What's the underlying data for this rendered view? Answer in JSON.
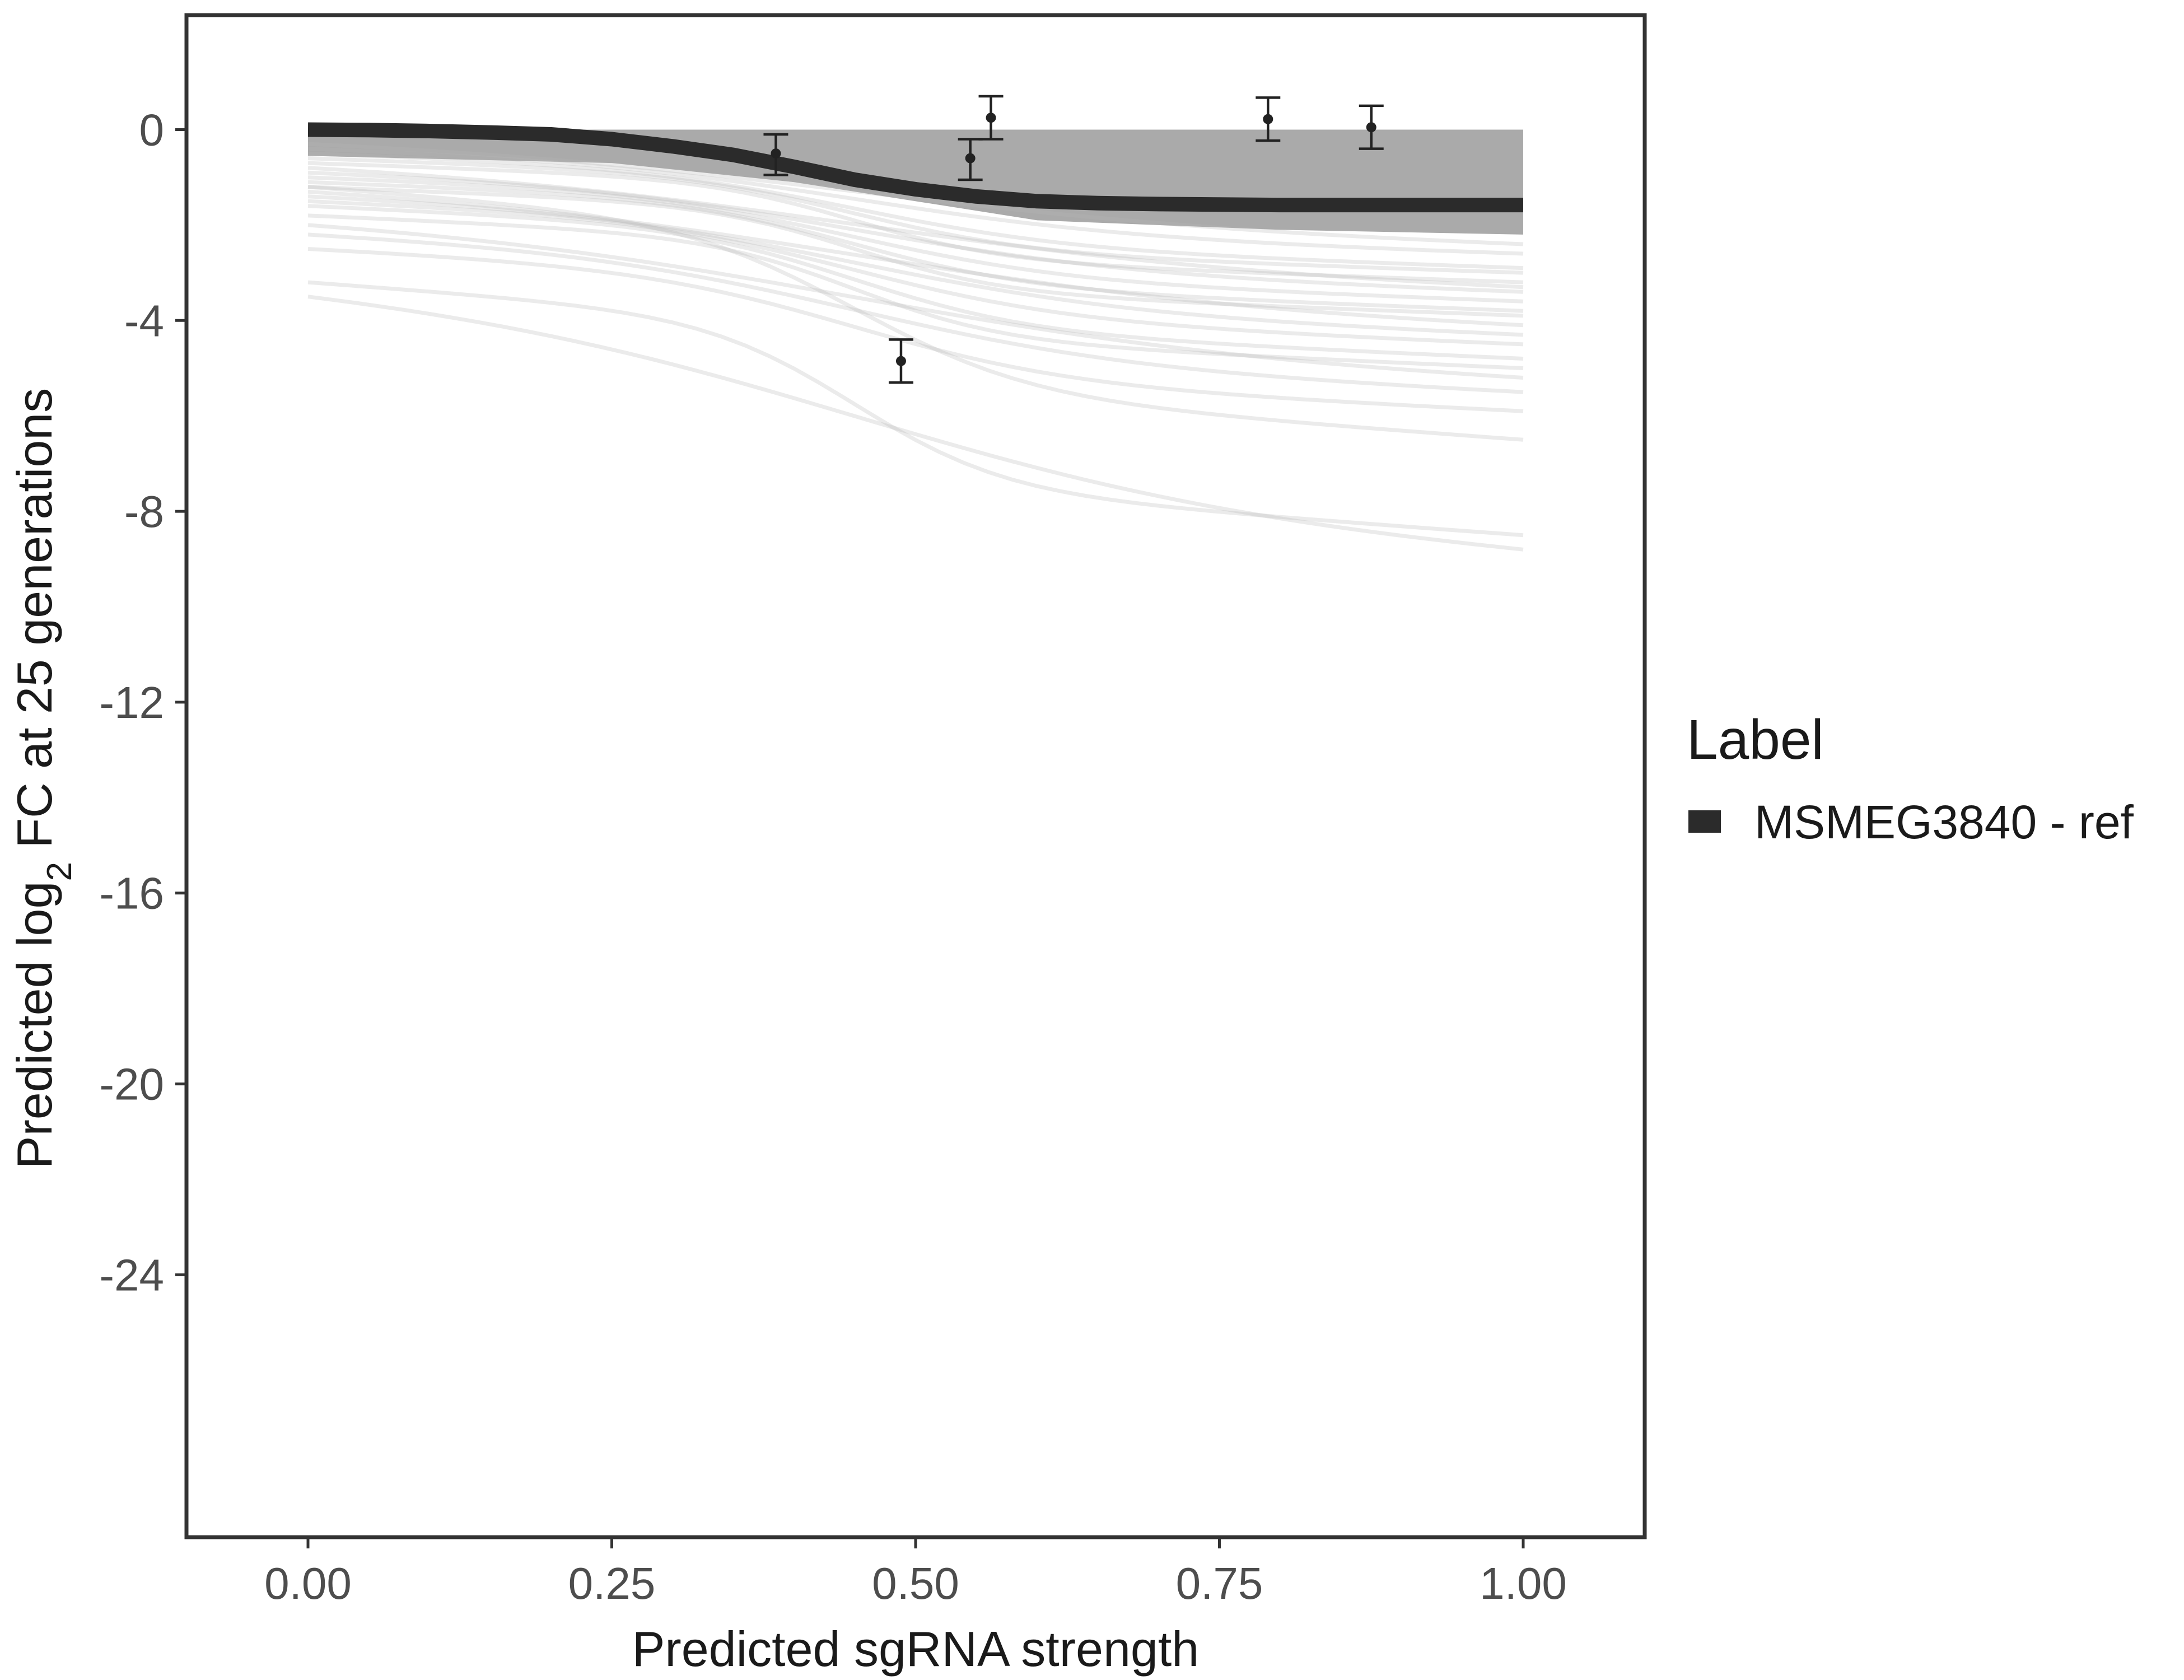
{
  "chart_data": {
    "type": "line",
    "title": "",
    "xlabel": "Predicted sgRNA strength",
    "ylabel": {
      "prefix": "Predicted  log",
      "subscript": "2",
      "suffix": " FC at 25 generations"
    },
    "xlim": [
      -0.1,
      1.1
    ],
    "ylim": [
      -29.5,
      2.4
    ],
    "x_ticks": [
      0.0,
      0.25,
      0.5,
      0.75,
      1.0
    ],
    "x_tick_labels": [
      "0.00",
      "0.25",
      "0.50",
      "0.75",
      "1.00"
    ],
    "y_ticks": [
      0,
      -4,
      -8,
      -12,
      -16,
      -20,
      -24
    ],
    "y_tick_labels": [
      "0",
      "-4",
      "-8",
      "-12",
      "-16",
      "-20",
      "-24"
    ],
    "grid": false,
    "legend": {
      "title": "Label",
      "position": "right",
      "entries": [
        {
          "label": "MSMEG3840 - ref",
          "color": "#2b2b2b"
        }
      ]
    },
    "main_curve": {
      "name": "MSMEG3840 - ref",
      "color": "#2b2b2b",
      "points": [
        [
          0.0,
          0.0
        ],
        [
          0.05,
          -0.01
        ],
        [
          0.1,
          -0.03
        ],
        [
          0.15,
          -0.06
        ],
        [
          0.2,
          -0.1
        ],
        [
          0.25,
          -0.2
        ],
        [
          0.3,
          -0.35
        ],
        [
          0.35,
          -0.53
        ],
        [
          0.4,
          -0.78
        ],
        [
          0.45,
          -1.05
        ],
        [
          0.5,
          -1.25
        ],
        [
          0.55,
          -1.4
        ],
        [
          0.6,
          -1.5
        ],
        [
          0.65,
          -1.54
        ],
        [
          0.7,
          -1.56
        ],
        [
          0.75,
          -1.57
        ],
        [
          0.8,
          -1.58
        ],
        [
          0.85,
          -1.58
        ],
        [
          0.9,
          -1.58
        ],
        [
          0.95,
          -1.58
        ],
        [
          1.0,
          -1.58
        ]
      ]
    },
    "posterior_band": {
      "color": "#aaaaaa",
      "upper": 0.0,
      "note_lower": "dense posterior band lower edge (data units)",
      "lower": [
        [
          0.0,
          -0.55
        ],
        [
          0.25,
          -0.7
        ],
        [
          0.4,
          -1.1
        ],
        [
          0.6,
          -1.9
        ],
        [
          0.8,
          -2.1
        ],
        [
          1.0,
          -2.2
        ]
      ]
    },
    "posterior_draws": [
      {
        "start": -0.3,
        "end": -2.4
      },
      {
        "start": -0.4,
        "end": -2.6
      },
      {
        "start": -0.5,
        "end": -2.9
      },
      {
        "start": -0.6,
        "end": -3.0
      },
      {
        "start": -0.7,
        "end": -3.2
      },
      {
        "start": -0.8,
        "end": -3.3
      },
      {
        "start": -0.9,
        "end": -3.4
      },
      {
        "start": -1.0,
        "end": -3.6
      },
      {
        "start": -1.1,
        "end": -3.8
      },
      {
        "start": -1.2,
        "end": -3.9
      },
      {
        "start": -1.3,
        "end": -4.1
      },
      {
        "start": -1.4,
        "end": -4.3
      },
      {
        "start": -1.5,
        "end": -4.5
      },
      {
        "start": -1.6,
        "end": -4.8
      },
      {
        "start": -1.8,
        "end": -5.0
      },
      {
        "start": -2.0,
        "end": -5.2
      },
      {
        "start": -2.2,
        "end": -5.5
      },
      {
        "start": -2.5,
        "end": -5.9
      },
      {
        "start": -1.2,
        "end": -6.5
      },
      {
        "start": -3.2,
        "end": -8.5
      },
      {
        "start": -3.5,
        "end": -8.8
      }
    ],
    "points": [
      {
        "x": 0.385,
        "y": -0.5,
        "ymin": -0.95,
        "ymax": -0.1
      },
      {
        "x": 0.488,
        "y": -4.85,
        "ymin": -5.3,
        "ymax": -4.4
      },
      {
        "x": 0.545,
        "y": -0.6,
        "ymin": -1.05,
        "ymax": -0.2
      },
      {
        "x": 0.562,
        "y": 0.25,
        "ymin": -0.2,
        "ymax": 0.7
      },
      {
        "x": 0.79,
        "y": 0.22,
        "ymin": -0.23,
        "ymax": 0.67
      },
      {
        "x": 0.875,
        "y": 0.05,
        "ymin": -0.4,
        "ymax": 0.5
      }
    ]
  }
}
